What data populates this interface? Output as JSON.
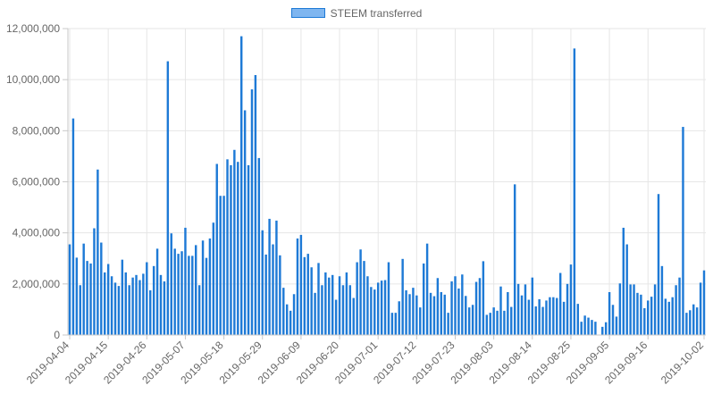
{
  "chart_data": {
    "type": "bar",
    "series": [
      {
        "name": "STEEM transferred",
        "values": [
          3550000,
          8480000,
          3030000,
          1950000,
          3580000,
          2900000,
          2800000,
          4180000,
          6480000,
          3620000,
          2450000,
          2780000,
          2300000,
          2050000,
          1920000,
          2950000,
          2450000,
          1950000,
          2250000,
          2350000,
          2150000,
          2400000,
          2850000,
          1750000,
          2700000,
          3380000,
          2350000,
          2100000,
          10720000,
          3980000,
          3380000,
          3180000,
          3280000,
          4200000,
          3100000,
          3100000,
          3520000,
          1950000,
          3700000,
          3020000,
          3780000,
          4400000,
          6700000,
          5450000,
          5450000,
          6880000,
          6650000,
          7250000,
          6780000,
          11700000,
          8800000,
          6650000,
          9620000,
          10180000,
          6930000,
          4100000,
          3150000,
          4550000,
          3550000,
          4480000,
          3120000,
          1850000,
          1200000,
          950000,
          1600000,
          3780000,
          3920000,
          3050000,
          3180000,
          2650000,
          1650000,
          2820000,
          1950000,
          2450000,
          2250000,
          2350000,
          1380000,
          2300000,
          1950000,
          2450000,
          1950000,
          1450000,
          2850000,
          3350000,
          2900000,
          2300000,
          1880000,
          1780000,
          2050000,
          2130000,
          2150000,
          2850000,
          870000,
          870000,
          1320000,
          2980000,
          1750000,
          1600000,
          1850000,
          1550000,
          1080000,
          2800000,
          3580000,
          1650000,
          1520000,
          2230000,
          1680000,
          1580000,
          870000,
          2100000,
          2300000,
          1820000,
          2370000,
          1530000,
          1080000,
          1180000,
          2080000,
          2230000,
          2890000,
          790000,
          870000,
          1080000,
          950000,
          1900000,
          950000,
          1680000,
          1100000,
          5900000,
          2000000,
          1550000,
          1980000,
          1380000,
          2250000,
          1120000,
          1400000,
          1100000,
          1350000,
          1480000,
          1480000,
          1450000,
          2430000,
          1300000,
          2000000,
          2760000,
          11220000,
          1220000,
          520000,
          760000,
          680000,
          590000,
          520000,
          0,
          320000,
          500000,
          1680000,
          1180000,
          720000,
          2020000,
          4200000,
          3550000,
          1980000,
          1980000,
          1650000,
          1580000,
          1050000,
          1350000,
          1500000,
          1980000,
          5520000,
          2700000,
          1420000,
          1300000,
          1480000,
          1950000,
          2250000,
          8150000,
          870000,
          970000,
          1200000,
          1080000,
          2050000,
          2530000
        ]
      }
    ],
    "x_start": "2019-04-04",
    "x_tick_labels": [
      "2019-04-04",
      "2019-04-15",
      "2019-04-26",
      "2019-05-07",
      "2019-05-18",
      "2019-05-29",
      "2019-06-09",
      "2019-06-20",
      "2019-07-01",
      "2019-07-12",
      "2019-07-23",
      "2019-08-03",
      "2019-08-14",
      "2019-08-25",
      "2019-09-05",
      "2019-09-16",
      "2019-10-02"
    ],
    "y_tick_labels": [
      "0",
      "2,000,000",
      "4,000,000",
      "6,000,000",
      "8,000,000",
      "10,000,000",
      "12,000,000"
    ],
    "ylim": [
      0,
      12000000
    ],
    "title": "",
    "xlabel": "",
    "ylabel": "",
    "grid": true,
    "legend": "top-center",
    "colors": {
      "bar_fill": "#1e7ad6",
      "legend_fill": "#7fb6f0",
      "legend_border": "#1e7ad6",
      "grid": "#e6e6e6",
      "axis": "#c8c8c8",
      "text": "#666666"
    }
  }
}
